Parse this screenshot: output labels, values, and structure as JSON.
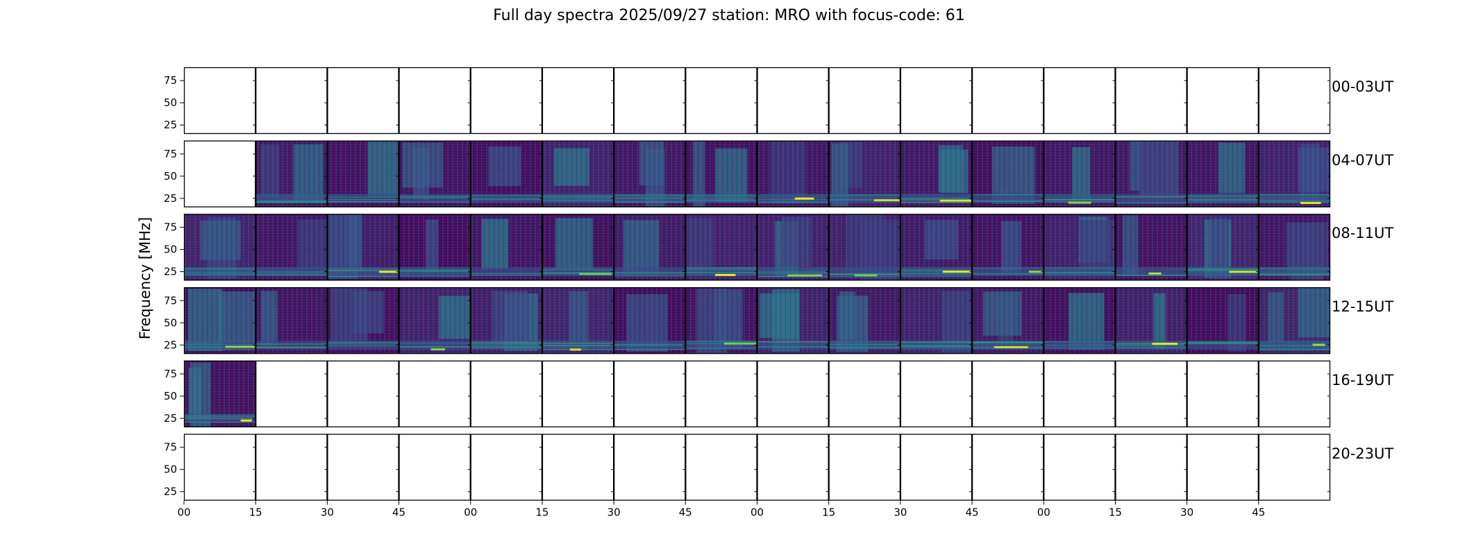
{
  "chart_data": {
    "type": "heatmap",
    "title": "Full day spectra 2025/09/27 station: MRO with focus-code: 61",
    "ylabel": "Frequency [MHz]",
    "xlabel": "",
    "yticks": [
      "75",
      "50",
      "25"
    ],
    "ytick_values": [
      75,
      50,
      25
    ],
    "ylim": [
      15,
      90
    ],
    "xticks": [
      "00",
      "15",
      "30",
      "45",
      "00",
      "15",
      "30",
      "45",
      "00",
      "15",
      "30",
      "45",
      "00",
      "15",
      "30",
      "45"
    ],
    "colormap": "viridis",
    "panels_per_row": 16,
    "minutes_per_panel": 15,
    "rows": [
      {
        "label": "00-03UT",
        "filled": [
          0,
          0,
          0,
          0,
          0,
          0,
          0,
          0,
          0,
          0,
          0,
          0,
          0,
          0,
          0,
          0
        ]
      },
      {
        "label": "04-07UT",
        "filled": [
          0,
          1,
          1,
          1,
          1,
          1,
          1,
          1,
          1,
          1,
          1,
          1,
          1,
          1,
          1,
          1
        ]
      },
      {
        "label": "08-11UT",
        "filled": [
          1,
          1,
          1,
          1,
          1,
          1,
          1,
          1,
          1,
          1,
          1,
          1,
          1,
          1,
          1,
          1
        ]
      },
      {
        "label": "12-15UT",
        "filled": [
          1,
          1,
          1,
          1,
          1,
          1,
          1,
          1,
          1,
          1,
          1,
          1,
          1,
          1,
          1,
          1
        ]
      },
      {
        "label": "16-19UT",
        "filled": [
          1,
          0,
          0,
          0,
          0,
          0,
          0,
          0,
          0,
          0,
          0,
          0,
          0,
          0,
          0,
          0
        ]
      },
      {
        "label": "20-23UT",
        "filled": [
          0,
          0,
          0,
          0,
          0,
          0,
          0,
          0,
          0,
          0,
          0,
          0,
          0,
          0,
          0,
          0
        ]
      }
    ]
  }
}
